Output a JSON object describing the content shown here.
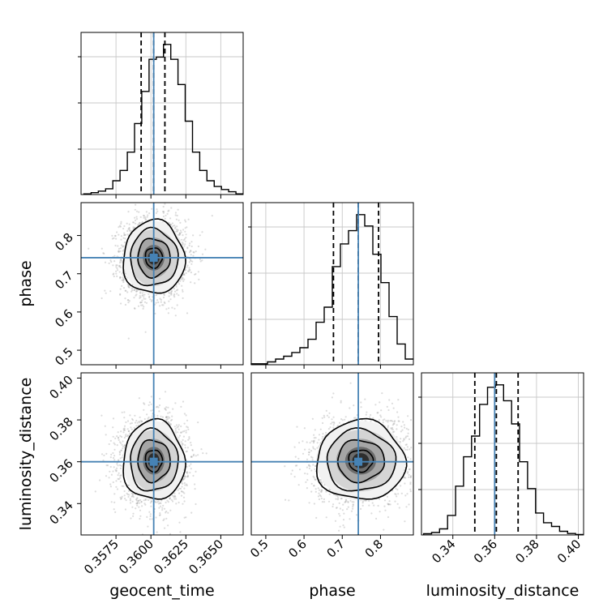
{
  "chart_data": {
    "type": "corner",
    "parameters": [
      "geocent_time",
      "phase",
      "luminosity_distance"
    ],
    "truths": [
      0.3602,
      0.742,
      0.36
    ],
    "ranges": [
      [
        0.355,
        0.3666
      ],
      [
        0.462,
        0.886
      ],
      [
        0.325,
        0.4025
      ]
    ],
    "ticks": [
      {
        "values": [
          0.3575,
          0.36,
          0.3625,
          0.365
        ],
        "labels": [
          "0.3575",
          "0.3600",
          "0.3625",
          "0.3650"
        ]
      },
      {
        "values": [
          0.5,
          0.6,
          0.7,
          0.8
        ],
        "labels": [
          "0.5",
          "0.6",
          "0.7",
          "0.8"
        ]
      },
      {
        "values": [
          0.34,
          0.36,
          0.38,
          0.4
        ],
        "labels": [
          "0.34",
          "0.36",
          "0.38",
          "0.40"
        ]
      }
    ],
    "quantiles": [
      [
        0.3593,
        0.3602,
        0.361
      ],
      [
        0.677,
        0.742,
        0.795
      ],
      [
        0.3505,
        0.3608,
        0.3712
      ]
    ],
    "marginals": [
      {
        "edges": [
          0.3552,
          0.3666
        ],
        "counts": [
          0.3,
          0.8,
          1.5,
          2.5,
          6.0,
          10.5,
          18.5,
          31,
          45,
          59,
          60,
          65.5,
          59,
          48,
          32,
          18.5,
          10.5,
          6.0,
          3.5,
          2.2,
          1.2,
          0.3
        ]
      },
      {
        "edges": [
          0.462,
          0.886
        ],
        "counts": [
          0.5,
          0.5,
          1.5,
          3.0,
          4.5,
          6.5,
          9.0,
          13.5,
          22.5,
          30.5,
          52.0,
          64.0,
          71.0,
          79.5,
          73.5,
          58.5,
          43.5,
          25.5,
          11.0,
          3.0
        ]
      },
      {
        "edges": [
          0.326,
          0.4025
        ],
        "counts": [
          0.5,
          1.0,
          2.5,
          8.0,
          20.0,
          32.0,
          40.5,
          53.5,
          60.5,
          61.5,
          55.0,
          45.5,
          30.0,
          19.0,
          9.0,
          5.0,
          3.5,
          1.5,
          0.6,
          0.2
        ]
      }
    ],
    "joint": [
      {
        "x": 0,
        "y": 1,
        "center": [
          0.3602,
          0.742
        ],
        "sigma": [
          0.0011,
          0.048
        ],
        "rho": 0.0
      },
      {
        "x": 0,
        "y": 2,
        "center": [
          0.3602,
          0.3605
        ],
        "sigma": [
          0.0011,
          0.0095
        ],
        "rho": 0.0
      },
      {
        "x": 1,
        "y": 2,
        "center": [
          0.748,
          0.3605
        ],
        "sigma": [
          0.058,
          0.0095
        ],
        "rho": 0.1
      }
    ],
    "grid": true,
    "truth_color": "#4682b4",
    "line_color": "#000000"
  }
}
